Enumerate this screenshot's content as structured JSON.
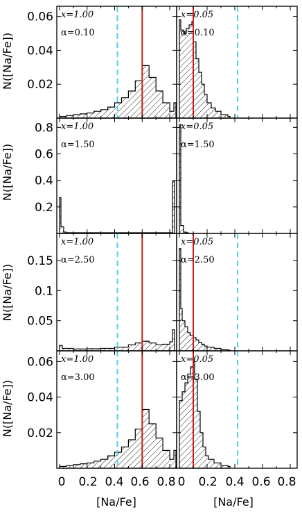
{
  "figure": {
    "ylabel": "N([Na/Fe])",
    "xlabel_left": "[Na/Fe]",
    "xlabel_right": "[Na/Fe]",
    "x_tick_labels": [
      "0",
      "0.2",
      "0.4",
      "0.6",
      "0.8"
    ],
    "colors": {
      "red_line": "#cc1a1a",
      "cyan_line": "#4fd1e6",
      "histogram": "#000000"
    }
  },
  "chart_data": [
    {
      "type": "histogram",
      "row": 1,
      "col": 1,
      "x_label": "x=1.00",
      "alpha_label": "α=0.10",
      "xlim": [
        -0.02,
        0.85
      ],
      "ylim": [
        0,
        0.066
      ],
      "y_ticks": [
        0.02,
        0.04,
        0.06
      ],
      "y_tick_labels": [
        "0.02",
        "0.04",
        "0.06"
      ],
      "red_x": 0.6,
      "cyan_x": 0.42,
      "hist": [
        [
          0.0,
          0.001
        ],
        [
          0.05,
          0.0015
        ],
        [
          0.1,
          0.002
        ],
        [
          0.15,
          0.0025
        ],
        [
          0.2,
          0.003
        ],
        [
          0.25,
          0.004
        ],
        [
          0.3,
          0.005
        ],
        [
          0.35,
          0.0065
        ],
        [
          0.4,
          0.009
        ],
        [
          0.45,
          0.012
        ],
        [
          0.5,
          0.016
        ],
        [
          0.55,
          0.022
        ],
        [
          0.6,
          0.031
        ],
        [
          0.65,
          0.024
        ],
        [
          0.7,
          0.016
        ],
        [
          0.75,
          0.009
        ],
        [
          0.8,
          0.004
        ],
        [
          0.83,
          0.009
        ]
      ]
    },
    {
      "type": "histogram",
      "row": 1,
      "col": 2,
      "x_label": "x=0.05",
      "alpha_label": "α=0.10",
      "xlim": [
        -0.02,
        0.85
      ],
      "ylim": [
        0,
        0.066
      ],
      "y_ticks": [
        0.02,
        0.04,
        0.06
      ],
      "y_tick_labels": [
        "0.02",
        "0.04",
        "0.06"
      ],
      "red_x": 0.1,
      "cyan_x": 0.42,
      "hist": [
        [
          0.0,
          0.058
        ],
        [
          0.01,
          0.052
        ],
        [
          0.03,
          0.05
        ],
        [
          0.05,
          0.053
        ],
        [
          0.07,
          0.055
        ],
        [
          0.09,
          0.057
        ],
        [
          0.1,
          0.045
        ],
        [
          0.12,
          0.035
        ],
        [
          0.14,
          0.027
        ],
        [
          0.16,
          0.02
        ],
        [
          0.18,
          0.014
        ],
        [
          0.2,
          0.009
        ],
        [
          0.23,
          0.006
        ],
        [
          0.26,
          0.004
        ],
        [
          0.3,
          0.002
        ],
        [
          0.35,
          0.001
        ]
      ]
    },
    {
      "type": "histogram",
      "row": 2,
      "col": 1,
      "x_label": "x=1.00",
      "alpha_label": "α=1.50",
      "xlim": [
        -0.02,
        0.85
      ],
      "ylim": [
        0,
        0.87
      ],
      "y_ticks": [
        0.2,
        0.4,
        0.6,
        0.8
      ],
      "y_tick_labels": [
        "0.2",
        "0.4",
        "0.6",
        "0.8"
      ],
      "red_x": null,
      "cyan_x": null,
      "hist": [
        [
          0.0,
          0.27
        ],
        [
          0.01,
          0.05
        ],
        [
          0.03,
          0.01
        ],
        [
          0.05,
          0.005
        ],
        [
          0.79,
          0.005
        ],
        [
          0.82,
          0.39
        ]
      ]
    },
    {
      "type": "histogram",
      "row": 2,
      "col": 2,
      "x_label": "x=0.05",
      "alpha_label": "α=1.50",
      "xlim": [
        -0.02,
        0.85
      ],
      "ylim": [
        0,
        0.87
      ],
      "y_ticks": [
        0.2,
        0.4,
        0.6,
        0.8
      ],
      "y_tick_labels": [
        "0.2",
        "0.4",
        "0.6",
        "0.8"
      ],
      "red_x": null,
      "cyan_x": null,
      "hist": [
        [
          0.0,
          0.82
        ],
        [
          0.01,
          0.06
        ],
        [
          0.03,
          0.01
        ],
        [
          0.05,
          0.005
        ]
      ]
    },
    {
      "type": "histogram",
      "row": 3,
      "col": 1,
      "x_label": "x=1.00",
      "alpha_label": "α=2.50",
      "xlim": [
        -0.02,
        0.85
      ],
      "ylim": [
        0,
        0.195
      ],
      "y_ticks": [
        0.05,
        0.1,
        0.15
      ],
      "y_tick_labels": [
        "0.05",
        "0.1",
        "0.15"
      ],
      "red_x": 0.6,
      "cyan_x": 0.42,
      "hist": [
        [
          0.0,
          0.009
        ],
        [
          0.02,
          0.004
        ],
        [
          0.1,
          0.003
        ],
        [
          0.2,
          0.0035
        ],
        [
          0.3,
          0.004
        ],
        [
          0.4,
          0.006
        ],
        [
          0.5,
          0.01
        ],
        [
          0.55,
          0.013
        ],
        [
          0.6,
          0.016
        ],
        [
          0.65,
          0.013
        ],
        [
          0.7,
          0.01
        ],
        [
          0.75,
          0.011
        ],
        [
          0.8,
          0.015
        ],
        [
          0.82,
          0.035
        ]
      ]
    },
    {
      "type": "histogram",
      "row": 3,
      "col": 2,
      "x_label": "x=0.05",
      "alpha_label": "α=2.50",
      "xlim": [
        -0.02,
        0.85
      ],
      "ylim": [
        0,
        0.195
      ],
      "y_ticks": [
        0.05,
        0.1,
        0.15
      ],
      "y_tick_labels": [
        "0.05",
        "0.1",
        "0.15"
      ],
      "red_x": 0.1,
      "cyan_x": 0.42,
      "hist": [
        [
          0.0,
          0.17
        ],
        [
          0.01,
          0.07
        ],
        [
          0.02,
          0.05
        ],
        [
          0.04,
          0.04
        ],
        [
          0.06,
          0.03
        ],
        [
          0.08,
          0.025
        ],
        [
          0.1,
          0.022
        ],
        [
          0.12,
          0.018
        ],
        [
          0.14,
          0.014
        ],
        [
          0.16,
          0.011
        ],
        [
          0.18,
          0.008
        ],
        [
          0.2,
          0.006
        ],
        [
          0.25,
          0.004
        ],
        [
          0.3,
          0.002
        ],
        [
          0.35,
          0.001
        ]
      ]
    },
    {
      "type": "histogram",
      "row": 4,
      "col": 1,
      "x_label": "x=1.00",
      "alpha_label": "α=3.00",
      "xlim": [
        -0.02,
        0.85
      ],
      "ylim": [
        0,
        0.066
      ],
      "y_ticks": [
        0.02,
        0.04,
        0.06
      ],
      "y_tick_labels": [
        "0.02",
        "0.04",
        "0.06"
      ],
      "red_x": 0.6,
      "cyan_x": 0.42,
      "hist": [
        [
          0.0,
          0.001
        ],
        [
          0.05,
          0.0015
        ],
        [
          0.1,
          0.002
        ],
        [
          0.15,
          0.0025
        ],
        [
          0.2,
          0.003
        ],
        [
          0.25,
          0.004
        ],
        [
          0.3,
          0.005
        ],
        [
          0.35,
          0.007
        ],
        [
          0.4,
          0.009
        ],
        [
          0.45,
          0.012
        ],
        [
          0.5,
          0.016
        ],
        [
          0.55,
          0.022
        ],
        [
          0.6,
          0.033
        ],
        [
          0.65,
          0.025
        ],
        [
          0.7,
          0.017
        ],
        [
          0.75,
          0.01
        ],
        [
          0.8,
          0.005
        ],
        [
          0.83,
          0.01
        ]
      ]
    },
    {
      "type": "histogram",
      "row": 4,
      "col": 2,
      "x_label": "x=0.05",
      "alpha_label": "α=3.00",
      "xlim": [
        -0.02,
        0.85
      ],
      "ylim": [
        0,
        0.066
      ],
      "y_ticks": [
        0.02,
        0.04,
        0.06
      ],
      "y_tick_labels": [
        "0.02",
        "0.04",
        "0.06"
      ],
      "red_x": 0.1,
      "cyan_x": 0.42,
      "hist": [
        [
          0.0,
          0.038
        ],
        [
          0.02,
          0.043
        ],
        [
          0.04,
          0.048
        ],
        [
          0.06,
          0.053
        ],
        [
          0.08,
          0.057
        ],
        [
          0.1,
          0.06
        ],
        [
          0.11,
          0.05
        ],
        [
          0.13,
          0.032
        ],
        [
          0.15,
          0.02
        ],
        [
          0.17,
          0.012
        ],
        [
          0.19,
          0.007
        ],
        [
          0.21,
          0.005
        ],
        [
          0.25,
          0.003
        ],
        [
          0.3,
          0.0015
        ],
        [
          0.35,
          0.001
        ]
      ]
    }
  ]
}
